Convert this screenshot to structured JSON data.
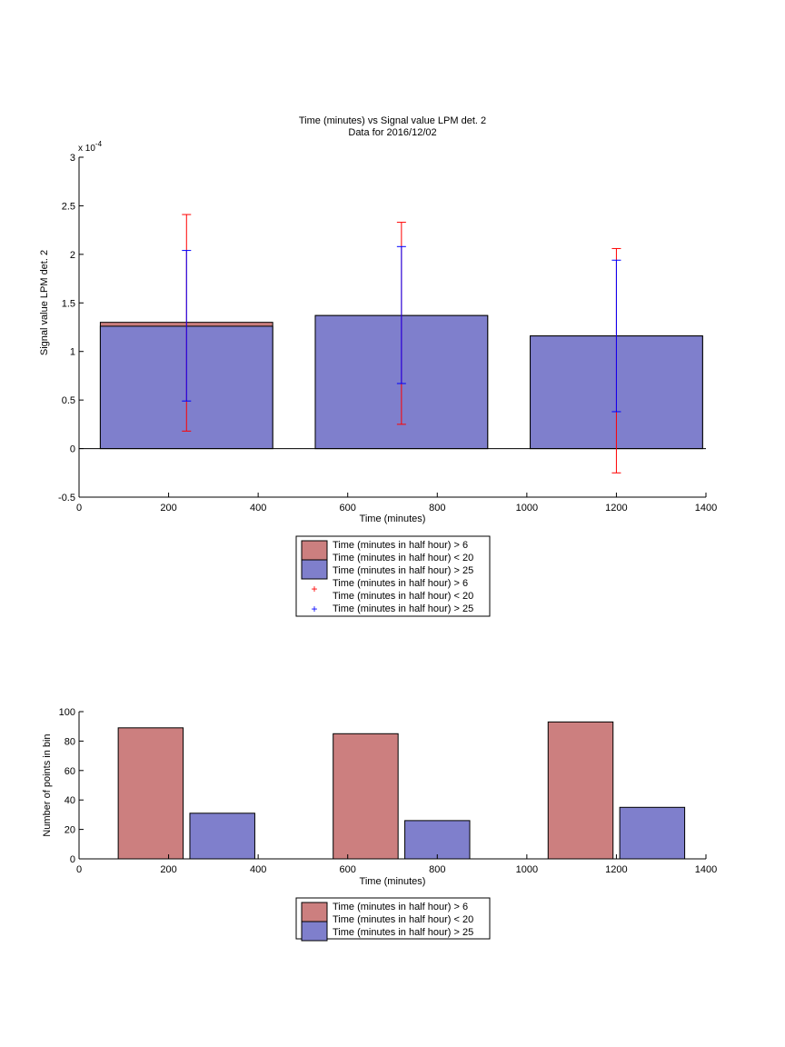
{
  "colors": {
    "red_fill": "#cc7f7f",
    "blue_fill": "#7f7fcc",
    "red_err": "#ff0000",
    "blue_err": "#0000ff",
    "axis": "#000000"
  },
  "chart_data": [
    {
      "type": "bar",
      "title": "Time (minutes) vs Signal value LPM det. 2",
      "subtitle": "Data for 2016/12/02",
      "xlabel": "Time (minutes)",
      "ylabel": "Signal value LPM det. 2",
      "y_exponent_label": "x 10",
      "y_exponent_power": "-4",
      "xlim": [
        0,
        1400
      ],
      "ylim": [
        -0.5,
        3
      ],
      "x_ticks": [
        "0",
        "200",
        "400",
        "600",
        "800",
        "1000",
        "1200",
        "1400"
      ],
      "y_ticks": [
        "-0.5",
        "0",
        "0.5",
        "1",
        "1.5",
        "2",
        "2.5",
        "3"
      ],
      "grid": false,
      "legend_position": "below",
      "legend": [
        "Time (minutes in half hour) > 6",
        "Time (minutes in half hour) < 20",
        "Time (minutes in half hour) > 25",
        "Time (minutes in half hour) > 6",
        "Time (minutes in half hour) < 20",
        "Time (minutes in half hour) > 25"
      ],
      "bar_x": [
        240,
        720,
        1200
      ],
      "bar_width_data": 385,
      "series": [
        {
          "name": "Time (minutes in half hour) > 6 & < 20",
          "color": "#cc7f7f",
          "values": [
            1.3,
            1.37,
            1.16
          ],
          "error_low": [
            0.18,
            0.25,
            -0.25
          ],
          "error_high": [
            2.41,
            2.33,
            2.06
          ]
        },
        {
          "name": "Time (minutes in half hour) > 25",
          "color": "#7f7fcc",
          "values": [
            1.26,
            1.37,
            1.16
          ],
          "error_low": [
            0.49,
            0.67,
            0.38
          ],
          "error_high": [
            2.04,
            2.08,
            1.94
          ]
        }
      ]
    },
    {
      "type": "bar",
      "xlabel": "Time (minutes)",
      "ylabel": "Number of points in bin",
      "xlim": [
        0,
        1400
      ],
      "ylim": [
        0,
        100
      ],
      "x_ticks": [
        "0",
        "200",
        "400",
        "600",
        "800",
        "1000",
        "1200",
        "1400"
      ],
      "y_ticks": [
        "0",
        "20",
        "40",
        "60",
        "80",
        "100"
      ],
      "grid": false,
      "legend_position": "below",
      "legend": [
        "Time (minutes in half hour) > 6",
        "Time (minutes in half hour) < 20",
        "Time (minutes in half hour) > 25"
      ],
      "bar_width_data": 145,
      "series": [
        {
          "name": "Time (minutes in half hour) > 6 & < 20",
          "color": "#cc7f7f",
          "x": [
            160,
            640,
            1120
          ],
          "values": [
            89,
            85,
            93
          ]
        },
        {
          "name": "Time (minutes in half hour) > 25",
          "color": "#7f7fcc",
          "x": [
            320,
            800,
            1280
          ],
          "values": [
            31,
            26,
            35
          ]
        }
      ]
    }
  ]
}
